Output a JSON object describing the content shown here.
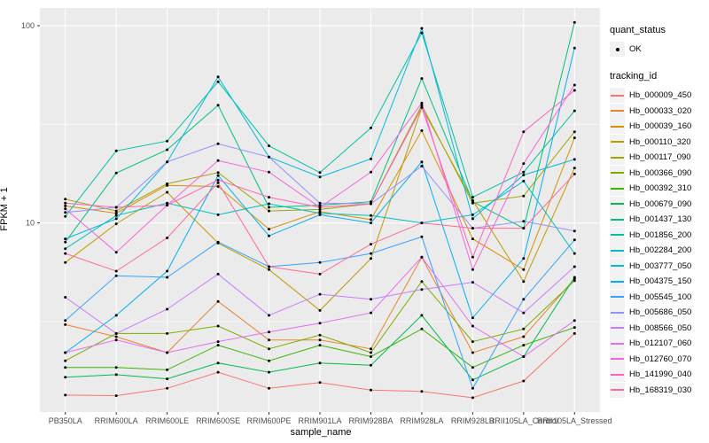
{
  "figure": {
    "xlabel": "sample_name",
    "ylabel": "FPKM + 1"
  },
  "legend": {
    "quant_title": "quant_status",
    "quant_items": [
      {
        "label": "OK",
        "symbol": "black-point"
      }
    ],
    "tracking_title": "tracking_id"
  },
  "chart_data": {
    "type": "line",
    "title": "",
    "xlabel": "sample_name",
    "ylabel": "FPKM + 1",
    "y_scale": "log10",
    "y_ticks": [
      "10",
      "100"
    ],
    "ylim": [
      1.1,
      123
    ],
    "grid": true,
    "legend_position": "right",
    "panel_bg": "#EBEBEB",
    "gridline_color": "#FFFFFF",
    "point_color": "#000000",
    "tick_label_color": "#4D4D4D",
    "categories": [
      "PB350LA",
      "RRIM600LA",
      "RRIM600LE",
      "RRIM600SE",
      "RRIM600PE",
      "RRIM901LA",
      "RRIM928BA",
      "RRIM928LA",
      "RRIM928LB",
      "RRII105LA_Control",
      "RRII105LA_Stressed"
    ],
    "series": [
      {
        "name": "Hb_000009_450",
        "color": "#F8766D",
        "values": [
          1.34,
          1.33,
          1.45,
          1.75,
          1.45,
          1.55,
          1.42,
          1.4,
          1.3,
          1.58,
          2.75
        ]
      },
      {
        "name": "Hb_000033_020",
        "color": "#EA8331",
        "values": [
          3.05,
          2.65,
          2.2,
          4.0,
          2.55,
          2.55,
          2.3,
          6.7,
          2.2,
          2.65,
          5.2
        ]
      },
      {
        "name": "Hb_000039_160",
        "color": "#D89000",
        "values": [
          12.2,
          11.2,
          15.5,
          15.3,
          9.3,
          11.4,
          10.4,
          29.4,
          8.3,
          5.8,
          27.0
        ]
      },
      {
        "name": "Hb_000110_320",
        "color": "#C09B00",
        "values": [
          6.3,
          9.9,
          14.3,
          7.9,
          5.8,
          3.6,
          6.6,
          38.5,
          13.0,
          5.05,
          19.0
        ]
      },
      {
        "name": "Hb_000117_090",
        "color": "#A3A500",
        "values": [
          13.2,
          11.5,
          15.8,
          18.0,
          11.5,
          11.7,
          12.5,
          39.5,
          12.6,
          13.7,
          29.0
        ]
      },
      {
        "name": "Hb_000366_090",
        "color": "#7CAE00",
        "values": [
          2.0,
          2.75,
          2.75,
          3.0,
          2.3,
          2.7,
          2.2,
          5.05,
          2.5,
          2.9,
          5.1
        ]
      },
      {
        "name": "Hb_000392_310",
        "color": "#39B600",
        "values": [
          1.85,
          1.85,
          1.8,
          2.4,
          2.0,
          2.4,
          2.1,
          2.9,
          1.85,
          2.4,
          2.95
        ]
      },
      {
        "name": "Hb_000679_090",
        "color": "#00BB4E",
        "values": [
          1.65,
          1.7,
          1.62,
          1.95,
          1.75,
          1.95,
          1.9,
          3.4,
          1.6,
          2.1,
          5.3
        ]
      },
      {
        "name": "Hb_001437_130",
        "color": "#00BF7D",
        "values": [
          8.0,
          17.9,
          23.5,
          39.5,
          12.0,
          12.3,
          12.8,
          54.0,
          12.8,
          9.4,
          104.0
        ]
      },
      {
        "name": "Hb_001856_200",
        "color": "#00C1A3",
        "values": [
          10.8,
          23.2,
          26.0,
          52.0,
          24.6,
          18.0,
          30.3,
          92.0,
          13.5,
          18.1,
          37.0
        ]
      },
      {
        "name": "Hb_002284_200",
        "color": "#00BFC4",
        "values": [
          7.4,
          10.9,
          12.6,
          11.0,
          12.5,
          11.2,
          10.9,
          10.0,
          11.0,
          16.3,
          7.0
        ]
      },
      {
        "name": "Hb_003777_050",
        "color": "#00BAE0",
        "values": [
          8.3,
          10.5,
          20.4,
          55.0,
          21.6,
          17.1,
          21.1,
          97.0,
          10.5,
          17.5,
          21.0
        ]
      },
      {
        "name": "Hb_004375_150",
        "color": "#00B0F6",
        "values": [
          2.2,
          3.4,
          5.7,
          17.4,
          8.6,
          11.0,
          10.0,
          20.4,
          3.3,
          6.6,
          77.0
        ]
      },
      {
        "name": "Hb_005545_100",
        "color": "#35A2FF",
        "values": [
          3.2,
          5.4,
          5.3,
          8.0,
          6.0,
          6.3,
          7.0,
          8.5,
          1.45,
          4.1,
          8.2
        ]
      },
      {
        "name": "Hb_005686_050",
        "color": "#9590FF",
        "values": [
          11.3,
          12.0,
          20.4,
          25.2,
          21.6,
          12.6,
          12.5,
          19.4,
          9.4,
          10.2,
          9.1
        ]
      },
      {
        "name": "Hb_008566_050",
        "color": "#C77CFF",
        "values": [
          4.2,
          2.75,
          3.65,
          5.5,
          3.4,
          4.35,
          4.1,
          4.6,
          5.0,
          3.5,
          6.0
        ]
      },
      {
        "name": "Hb_012107_060",
        "color": "#E76BF3",
        "values": [
          2.2,
          2.55,
          2.2,
          2.5,
          2.8,
          3.1,
          3.5,
          6.7,
          3.0,
          2.1,
          3.2
        ]
      },
      {
        "name": "Hb_012760_070",
        "color": "#FA62DB",
        "values": [
          11.8,
          7.1,
          12.3,
          20.7,
          18.1,
          12.0,
          18.1,
          40.6,
          5.8,
          20.0,
          50.0
        ]
      },
      {
        "name": "Hb_141990_040",
        "color": "#FF62BC",
        "values": [
          12.6,
          12.0,
          12.3,
          16.5,
          13.5,
          12.0,
          12.5,
          38.5,
          6.7,
          29.0,
          47.0
        ]
      },
      {
        "name": "Hb_168319_030",
        "color": "#FF6A98",
        "values": [
          7.0,
          5.7,
          8.4,
          16.0,
          6.0,
          5.5,
          7.8,
          10.0,
          9.4,
          9.4,
          17.7
        ]
      }
    ]
  }
}
